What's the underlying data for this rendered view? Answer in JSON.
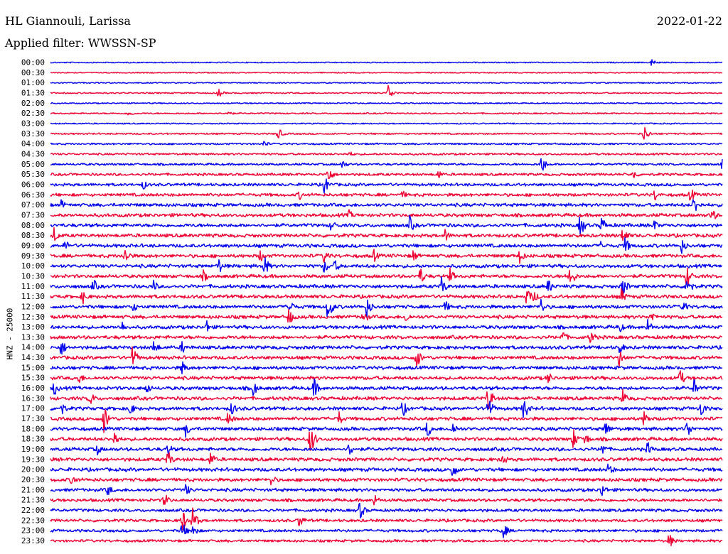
{
  "header": {
    "station": "HL Giannouli, Larissa",
    "filter": "Applied filter: WWSSN-SP",
    "date": "2022-01-22"
  },
  "chart_data": {
    "type": "line",
    "ylabel": "HNZ - 25000",
    "x": [
      "00:00",
      "00:30",
      "01:00",
      "01:30",
      "02:00",
      "02:30",
      "03:00",
      "03:30",
      "04:00",
      "04:30",
      "05:00",
      "05:30",
      "06:00",
      "06:30",
      "07:00",
      "07:30",
      "08:00",
      "08:30",
      "09:00",
      "09:30",
      "10:00",
      "10:30",
      "11:00",
      "11:30",
      "12:00",
      "12:30",
      "13:00",
      "13:30",
      "14:00",
      "14:30",
      "15:00",
      "15:30",
      "16:00",
      "16:30",
      "17:00",
      "17:30",
      "18:00",
      "18:30",
      "19:00",
      "19:30",
      "20:00",
      "20:30",
      "21:00",
      "21:30",
      "22:00",
      "22:30",
      "23:00",
      "23:30"
    ],
    "series_colors": [
      "#0000ee",
      "#ee0033"
    ],
    "noise": [
      0.1,
      0.08,
      0.1,
      0.15,
      0.12,
      0.2,
      0.15,
      0.3,
      0.35,
      0.4,
      0.5,
      0.65,
      0.75,
      0.85,
      0.95,
      1.0,
      1.0,
      1.0,
      1.0,
      1.0,
      1.0,
      1.0,
      1.0,
      1.0,
      1.0,
      1.0,
      1.0,
      1.0,
      1.0,
      1.0,
      1.0,
      1.0,
      1.0,
      1.0,
      1.0,
      1.0,
      1.0,
      1.0,
      1.0,
      1.0,
      1.0,
      0.95,
      0.9,
      0.85,
      0.8,
      0.75,
      0.7,
      0.65
    ],
    "events": [
      [
        [
          845,
          6
        ]
      ],
      [],
      [],
      [
        [
          236,
          7
        ],
        [
          475,
          12
        ]
      ],
      [],
      [
        [
          110,
          5
        ],
        [
          248,
          6
        ]
      ],
      [],
      [
        [
          320,
          9
        ],
        [
          835,
          12
        ]
      ],
      [
        [
          300,
          6
        ]
      ],
      [
        [
          420,
          5
        ]
      ],
      [
        [
          410,
          8
        ],
        [
          690,
          15
        ],
        [
          945,
          10
        ]
      ],
      [
        [
          390,
          14
        ],
        [
          545,
          8
        ],
        [
          820,
          8
        ]
      ],
      [
        [
          130,
          8
        ],
        [
          385,
          14
        ]
      ],
      [
        [
          350,
          8
        ],
        [
          495,
          7
        ],
        [
          850,
          10
        ],
        [
          900,
          12
        ]
      ],
      [
        [
          15,
          8
        ],
        [
          905,
          16
        ]
      ],
      [
        [
          420,
          8
        ],
        [
          930,
          12
        ]
      ],
      [
        [
          395,
          10
        ],
        [
          505,
          14
        ],
        [
          745,
          18
        ],
        [
          775,
          14
        ],
        [
          848,
          10
        ]
      ],
      [
        [
          5,
          12
        ],
        [
          555,
          10
        ],
        [
          805,
          14
        ]
      ],
      [
        [
          20,
          10
        ],
        [
          775,
          10
        ],
        [
          808,
          14
        ],
        [
          888,
          12
        ]
      ],
      [
        [
          105,
          14
        ],
        [
          295,
          10
        ],
        [
          385,
          12
        ],
        [
          455,
          10
        ],
        [
          510,
          10
        ],
        [
          660,
          12
        ]
      ],
      [
        [
          236,
          14
        ],
        [
          300,
          18
        ],
        [
          385,
          12
        ],
        [
          400,
          10
        ]
      ],
      [
        [
          215,
          10
        ],
        [
          520,
          14
        ],
        [
          562,
          12
        ],
        [
          730,
          20
        ],
        [
          895,
          18
        ]
      ],
      [
        [
          60,
          12
        ],
        [
          145,
          10
        ],
        [
          550,
          14
        ],
        [
          700,
          12
        ],
        [
          805,
          16
        ],
        [
          895,
          18
        ]
      ],
      [
        [
          45,
          12
        ],
        [
          670,
          14
        ],
        [
          680,
          10
        ],
        [
          803,
          12
        ]
      ],
      [
        [
          115,
          10
        ],
        [
          335,
          14
        ],
        [
          390,
          22
        ],
        [
          445,
          16
        ],
        [
          555,
          10
        ],
        [
          690,
          12
        ],
        [
          890,
          12
        ]
      ],
      [
        [
          335,
          14
        ],
        [
          440,
          12
        ],
        [
          500,
          10
        ],
        [
          845,
          10
        ]
      ],
      [
        [
          100,
          10
        ],
        [
          220,
          10
        ],
        [
          800,
          10
        ],
        [
          840,
          12
        ]
      ],
      [
        [
          720,
          12
        ],
        [
          760,
          12
        ]
      ],
      [
        [
          15,
          14
        ],
        [
          145,
          12
        ],
        [
          185,
          10
        ],
        [
          800,
          12
        ]
      ],
      [
        [
          115,
          18
        ],
        [
          515,
          16
        ],
        [
          800,
          14
        ]
      ],
      [
        [
          185,
          12
        ]
      ],
      [
        [
          40,
          10
        ],
        [
          700,
          10
        ],
        [
          885,
          14
        ]
      ],
      [
        [
          5,
          12
        ],
        [
          135,
          10
        ],
        [
          285,
          12
        ],
        [
          370,
          16
        ],
        [
          905,
          14
        ]
      ],
      [
        [
          55,
          12
        ],
        [
          615,
          22
        ],
        [
          805,
          14
        ]
      ],
      [
        [
          15,
          12
        ],
        [
          110,
          14
        ],
        [
          255,
          12
        ],
        [
          495,
          14
        ],
        [
          615,
          20
        ],
        [
          665,
          20
        ],
        [
          915,
          14
        ]
      ],
      [
        [
          75,
          22
        ],
        [
          250,
          12
        ],
        [
          405,
          12
        ],
        [
          835,
          14
        ]
      ],
      [
        [
          190,
          12
        ],
        [
          530,
          14
        ],
        [
          565,
          12
        ],
        [
          780,
          14
        ],
        [
          895,
          14
        ]
      ],
      [
        [
          90,
          12
        ],
        [
          365,
          24
        ],
        [
          735,
          16
        ],
        [
          750,
          14
        ]
      ],
      [
        [
          65,
          10
        ],
        [
          165,
          10
        ],
        [
          420,
          12
        ],
        [
          775,
          12
        ],
        [
          840,
          12
        ]
      ],
      [
        [
          165,
          14
        ],
        [
          225,
          12
        ],
        [
          635,
          12
        ]
      ],
      [
        [
          565,
          14
        ],
        [
          785,
          12
        ]
      ],
      [
        [
          30,
          10
        ],
        [
          310,
          10
        ]
      ],
      [
        [
          80,
          10
        ],
        [
          190,
          10
        ],
        [
          775,
          12
        ]
      ],
      [
        [
          160,
          12
        ],
        [
          455,
          10
        ]
      ],
      [
        [
          435,
          14
        ]
      ],
      [
        [
          185,
          18
        ],
        [
          200,
          18
        ],
        [
          350,
          12
        ]
      ],
      [
        [
          185,
          14
        ],
        [
          200,
          10
        ],
        [
          635,
          16
        ]
      ],
      [
        [
          870,
          12
        ]
      ]
    ]
  }
}
